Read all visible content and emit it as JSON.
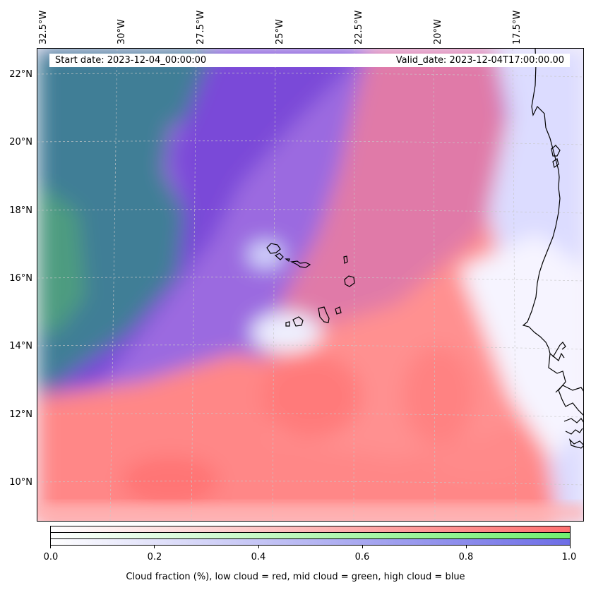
{
  "map": {
    "start_date": "Start date: 2023-12-04_00:00:00",
    "valid_date": "Valid_date: 2023-12-04T17:00:00.00",
    "longitude_labels": [
      "32.5°W",
      "30°W",
      "27.5°W",
      "25°W",
      "22.5°W",
      "20°W",
      "17.5°W"
    ],
    "latitude_labels": [
      "22°N",
      "20°N",
      "18°N",
      "16°N",
      "14°N",
      "12°N",
      "10°N"
    ],
    "lon_range": [
      -32.5,
      -15.2
    ],
    "lat_range": [
      8.9,
      22.8
    ],
    "layers": {
      "low_cloud": "red",
      "mid_cloud": "green",
      "high_cloud": "blue"
    },
    "colors": {
      "low_cloud": "#ff8080",
      "mid_cloud": "#80ff80",
      "high_cloud": "#8080ff",
      "coastline": "#000000",
      "gridline": "#c8c8c8"
    }
  },
  "colorbar": {
    "ticks": [
      "0.0",
      "0.2",
      "0.4",
      "0.6",
      "0.8",
      "1.0"
    ],
    "caption": "Cloud fraction (%), low cloud = red, mid cloud = green, high cloud = blue",
    "range": [
      0.0,
      1.0
    ]
  }
}
